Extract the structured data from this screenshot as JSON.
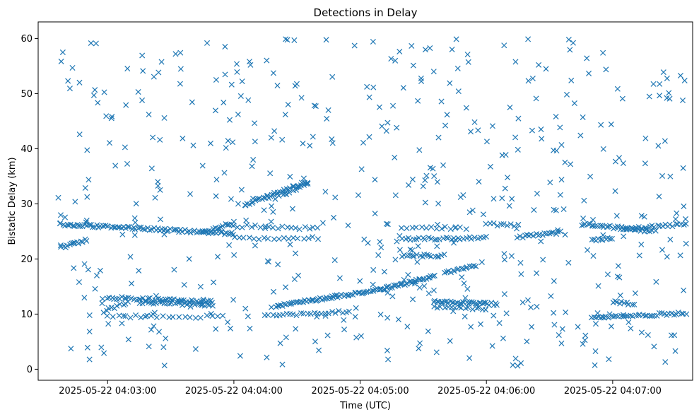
{
  "chart_data": {
    "type": "scatter",
    "title": "Detections in Delay",
    "xlabel": "Time (UTC)",
    "ylabel": "Bistatic Delay (km)",
    "marker": "x",
    "color": "#1f77b4",
    "grid": false,
    "xlim": [
      "2025-05-22 04:02:27",
      "2025-05-22 04:07:38"
    ],
    "ylim": [
      -2,
      63
    ],
    "x_ticks": [
      "2025-05-22 04:03:00",
      "2025-05-22 04:04:00",
      "2025-05-22 04:05:00",
      "2025-05-22 04:06:00",
      "2025-05-22 04:07:00"
    ],
    "y_ticks": [
      0,
      10,
      20,
      30,
      40,
      50,
      60
    ],
    "series": [
      {
        "tracks": [
          {
            "t0": "2025-05-22 04:02:37",
            "t1": "2025-05-22 04:04:00",
            "y0": 26.3,
            "y1": 24.6,
            "n": 90
          },
          {
            "t0": "2025-05-22 04:02:38",
            "t1": "2025-05-22 04:02:50",
            "y0": 22.0,
            "y1": 23.5,
            "n": 14
          },
          {
            "t0": "2025-05-22 04:03:45",
            "t1": "2025-05-22 04:04:00",
            "y0": 24.8,
            "y1": 26.6,
            "n": 16
          },
          {
            "t0": "2025-05-22 04:03:00",
            "t1": "2025-05-22 04:03:50",
            "y0": 13.0,
            "y1": 12.2,
            "n": 45
          },
          {
            "t0": "2025-05-22 04:03:15",
            "t1": "2025-05-22 04:03:50",
            "y0": 12.2,
            "y1": 11.6,
            "n": 30
          },
          {
            "t0": "2025-05-22 04:03:00",
            "t1": "2025-05-22 04:03:55",
            "y0": 9.6,
            "y1": 9.5,
            "n": 22
          },
          {
            "t0": "2025-05-22 04:02:58",
            "t1": "2025-05-22 04:03:10",
            "y0": 10.5,
            "y1": 12.3,
            "n": 10
          },
          {
            "t0": "2025-05-22 04:04:05",
            "t1": "2025-05-22 04:04:35",
            "y0": 29.8,
            "y1": 34.0,
            "n": 38
          },
          {
            "t0": "2025-05-22 04:04:20",
            "t1": "2025-05-22 04:04:35",
            "y0": 31.0,
            "y1": 33.5,
            "n": 10
          },
          {
            "t0": "2025-05-22 04:04:00",
            "t1": "2025-05-22 04:04:40",
            "y0": 26.0,
            "y1": 25.5,
            "n": 20
          },
          {
            "t0": "2025-05-22 04:04:00",
            "t1": "2025-05-22 04:04:40",
            "y0": 23.8,
            "y1": 23.8,
            "n": 18
          },
          {
            "t0": "2025-05-22 04:04:20",
            "t1": "2025-05-22 04:05:10",
            "y0": 11.5,
            "y1": 14.5,
            "n": 60
          },
          {
            "t0": "2025-05-22 04:05:10",
            "t1": "2025-05-22 04:05:35",
            "y0": 14.5,
            "y1": 16.8,
            "n": 35
          },
          {
            "t0": "2025-05-22 04:05:40",
            "t1": "2025-05-22 04:05:55",
            "y0": 17.5,
            "y1": 18.8,
            "n": 16
          },
          {
            "t0": "2025-05-22 04:04:15",
            "t1": "2025-05-22 04:04:55",
            "y0": 9.6,
            "y1": 10.5,
            "n": 25
          },
          {
            "t0": "2025-05-22 04:05:20",
            "t1": "2025-05-22 04:05:40",
            "y0": 20.6,
            "y1": 20.6,
            "n": 18
          },
          {
            "t0": "2025-05-22 04:05:20",
            "t1": "2025-05-22 04:06:00",
            "y0": 23.6,
            "y1": 23.8,
            "n": 30
          },
          {
            "t0": "2025-05-22 04:05:20",
            "t1": "2025-05-22 04:05:50",
            "y0": 25.6,
            "y1": 25.6,
            "n": 14
          },
          {
            "t0": "2025-05-22 04:05:35",
            "t1": "2025-05-22 04:06:05",
            "y0": 12.3,
            "y1": 11.8,
            "n": 36
          },
          {
            "t0": "2025-05-22 04:05:35",
            "t1": "2025-05-22 04:06:00",
            "y0": 11.2,
            "y1": 11.0,
            "n": 16
          },
          {
            "t0": "2025-05-22 04:06:00",
            "t1": "2025-05-22 04:06:15",
            "y0": 26.3,
            "y1": 26.0,
            "n": 10
          },
          {
            "t0": "2025-05-22 04:06:15",
            "t1": "2025-05-22 04:06:35",
            "y0": 24.0,
            "y1": 24.8,
            "n": 20
          },
          {
            "t0": "2025-05-22 04:06:45",
            "t1": "2025-05-22 04:07:20",
            "y0": 26.3,
            "y1": 25.0,
            "n": 36
          },
          {
            "t0": "2025-05-22 04:06:50",
            "t1": "2025-05-22 04:07:00",
            "y0": 23.5,
            "y1": 23.8,
            "n": 10
          },
          {
            "t0": "2025-05-22 04:07:05",
            "t1": "2025-05-22 04:07:35",
            "y0": 25.5,
            "y1": 26.3,
            "n": 25
          },
          {
            "t0": "2025-05-22 04:06:50",
            "t1": "2025-05-22 04:07:35",
            "y0": 9.3,
            "y1": 10.2,
            "n": 40
          },
          {
            "t0": "2025-05-22 04:07:00",
            "t1": "2025-05-22 04:07:10",
            "y0": 12.3,
            "y1": 11.8,
            "n": 10
          }
        ],
        "noise": [
          {
            "t0": "2025-05-22 04:02:35",
            "t1": "2025-05-22 04:07:35",
            "y0": 0.5,
            "y1": 60,
            "n": 520
          }
        ]
      }
    ]
  }
}
